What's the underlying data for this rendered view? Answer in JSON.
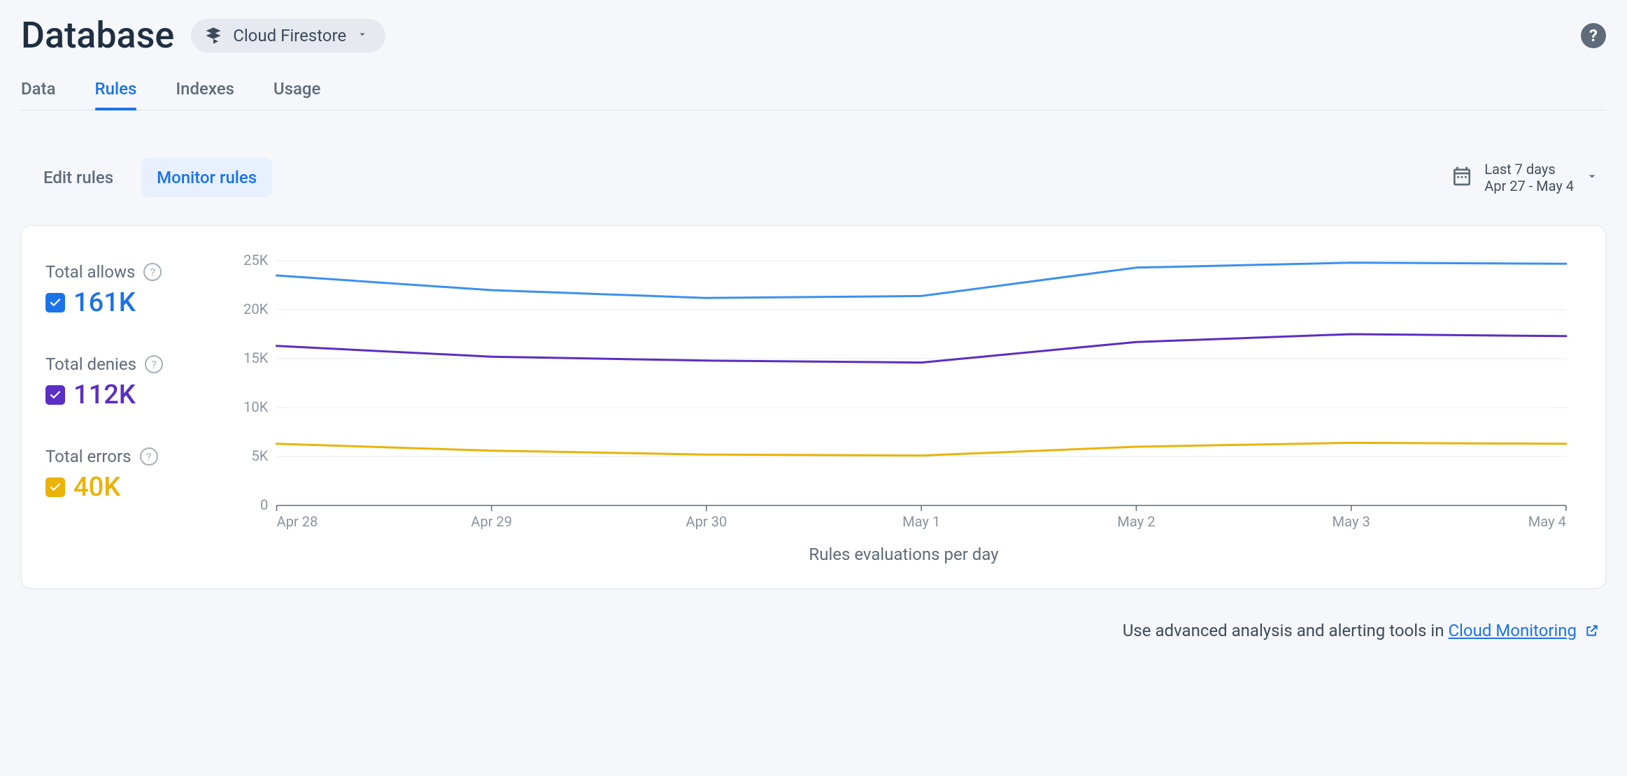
{
  "header": {
    "title": "Database",
    "selector_label": "Cloud Firestore"
  },
  "tabs": [
    {
      "label": "Data",
      "active": false
    },
    {
      "label": "Rules",
      "active": true
    },
    {
      "label": "Indexes",
      "active": false
    },
    {
      "label": "Usage",
      "active": false
    }
  ],
  "sub_tabs": [
    {
      "label": "Edit rules",
      "active": false
    },
    {
      "label": "Monitor rules",
      "active": true
    }
  ],
  "date_picker": {
    "range_label": "Last 7 days",
    "range_dates": "Apr 27 - May 4"
  },
  "legend": [
    {
      "label": "Total allows",
      "value": "161K",
      "color": "#1a73e8"
    },
    {
      "label": "Total denies",
      "value": "112K",
      "color": "#5b2ec4"
    },
    {
      "label": "Total errors",
      "value": "40K",
      "color": "#eab308"
    }
  ],
  "chart": {
    "type": "line",
    "x_axis_title": "Rules evaluations per day",
    "x_labels": [
      "Apr 28",
      "Apr 29",
      "Apr 30",
      "May 1",
      "May 2",
      "May 3",
      "May 4"
    ],
    "y_ticks": [
      0,
      5,
      10,
      15,
      20,
      25
    ],
    "y_tick_suffix": "K",
    "ylim": [
      0,
      25
    ],
    "grid_color": "#e5e8ec",
    "axis_label_color": "#8a94a1",
    "axis_label_fontsize": 20,
    "background_color": "#ffffff",
    "line_width": 3,
    "series": [
      {
        "name": "allows",
        "color": "#3b90f0",
        "values": [
          23.5,
          22.0,
          21.2,
          21.4,
          24.3,
          24.8,
          24.7
        ]
      },
      {
        "name": "denies",
        "color": "#5b2ec4",
        "values": [
          16.3,
          15.2,
          14.8,
          14.6,
          16.7,
          17.5,
          17.3
        ]
      },
      {
        "name": "errors",
        "color": "#eab308",
        "values": [
          6.3,
          5.6,
          5.2,
          5.1,
          6.0,
          6.4,
          6.3
        ]
      }
    ]
  },
  "footer": {
    "prefix": "Use advanced analysis and alerting tools in ",
    "link_text": "Cloud Monitoring"
  }
}
